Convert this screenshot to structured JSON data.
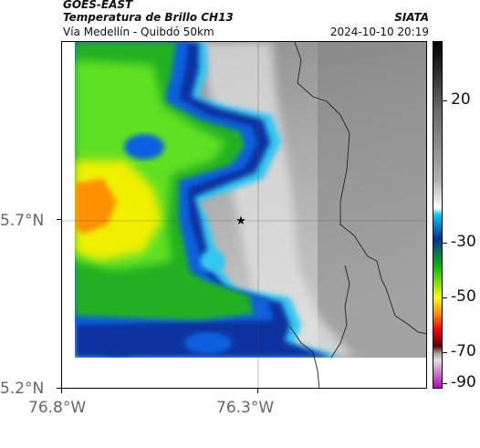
{
  "header": {
    "satellite": "GOES-EAST",
    "product": "Temperatura de Brillo CH13",
    "route": "Vía Medellín - Quibdó 50km",
    "organization": "SIATA",
    "timestamp": "2024-10-10 20:19"
  },
  "map": {
    "marker_icon": "star-marker-icon",
    "latitude_labels": [
      "5.7°N",
      "5.2°N"
    ],
    "longitude_labels": [
      "76.8°W",
      "76.3°W"
    ]
  },
  "colorbar": {
    "tick_labels": [
      "20",
      "-30",
      "-50",
      "-70",
      "-90"
    ],
    "colors": [
      "#000000",
      "#ffffff",
      "#00c8ff",
      "#0030a0",
      "#00c000",
      "#ffff00",
      "#ff8000",
      "#ff0000",
      "#600000",
      "#c000c0"
    ]
  }
}
